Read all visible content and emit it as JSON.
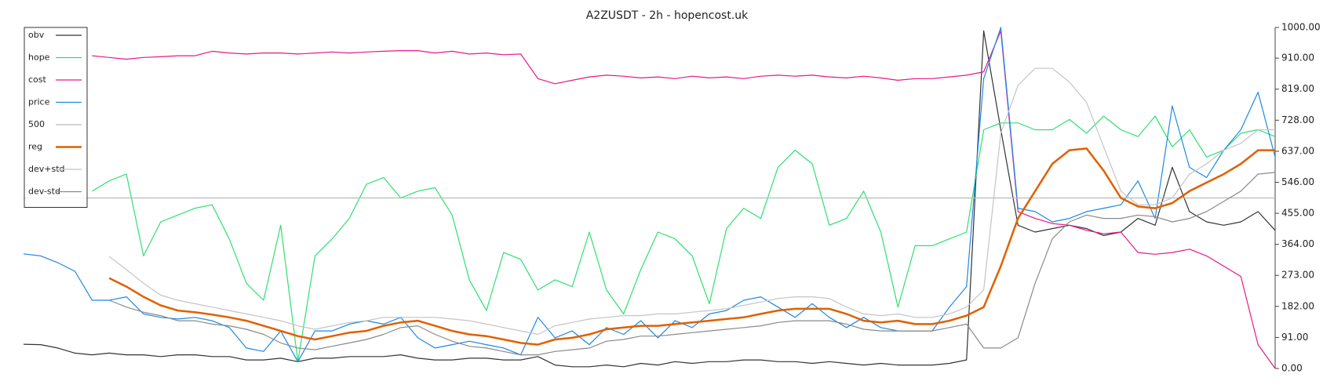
{
  "chart_data": {
    "type": "line",
    "title": "A2ZUSDT - 2h - hopencost.uk",
    "ylim": [
      0,
      1000
    ],
    "yticks": [
      {
        "value": 0,
        "label": "0.00"
      },
      {
        "value": 91,
        "label": "91.00"
      },
      {
        "value": 182,
        "label": "182.00"
      },
      {
        "value": 273,
        "label": "273.00"
      },
      {
        "value": 364,
        "label": "364.00"
      },
      {
        "value": 455,
        "label": "455.00"
      },
      {
        "value": 546,
        "label": "546.00"
      },
      {
        "value": 637,
        "label": "637.00"
      },
      {
        "value": 728,
        "label": "728.00"
      },
      {
        "value": 819,
        "label": "819.00"
      },
      {
        "value": 910,
        "label": "910.00"
      },
      {
        "value": 1000,
        "label": "1000.00"
      }
    ],
    "legend": "upper left",
    "series": [
      {
        "name": "obv",
        "color": "#333333",
        "values": [
          71,
          70,
          60,
          45,
          40,
          45,
          40,
          40,
          35,
          40,
          40,
          35,
          35,
          25,
          25,
          30,
          20,
          30,
          30,
          35,
          35,
          35,
          40,
          30,
          25,
          25,
          30,
          30,
          25,
          25,
          35,
          10,
          5,
          5,
          10,
          5,
          15,
          10,
          20,
          15,
          20,
          20,
          25,
          25,
          20,
          20,
          15,
          20,
          15,
          10,
          15,
          10,
          10,
          10,
          15,
          25,
          990,
          700,
          420,
          400,
          410,
          420,
          410,
          390,
          400,
          440,
          420,
          590,
          460,
          430,
          420,
          430,
          460,
          405
        ]
      },
      {
        "name": "hope",
        "color": "#2ee06e",
        "values": [
          null,
          null,
          null,
          null,
          520,
          550,
          570,
          330,
          430,
          450,
          470,
          480,
          380,
          250,
          200,
          420,
          20,
          330,
          380,
          440,
          540,
          560,
          500,
          520,
          530,
          450,
          260,
          170,
          340,
          320,
          230,
          260,
          240,
          400,
          230,
          160,
          290,
          400,
          380,
          330,
          190,
          410,
          470,
          440,
          590,
          640,
          600,
          420,
          440,
          520,
          400,
          180,
          360,
          360,
          380,
          400,
          700,
          720,
          720,
          700,
          700,
          730,
          690,
          740,
          700,
          680,
          740,
          650,
          700,
          620,
          640,
          690,
          700,
          680
        ]
      },
      {
        "name": "cost",
        "color": "#e8178a",
        "values": [
          null,
          null,
          null,
          null,
          917,
          912,
          907,
          912,
          914,
          917,
          917,
          930,
          925,
          922,
          925,
          925,
          922,
          925,
          928,
          925,
          928,
          930,
          932,
          932,
          925,
          930,
          922,
          925,
          920,
          922,
          850,
          835,
          845,
          855,
          860,
          857,
          852,
          855,
          850,
          857,
          852,
          855,
          850,
          857,
          860,
          857,
          860,
          855,
          852,
          857,
          852,
          845,
          850,
          850,
          855,
          860,
          870,
          990,
          460,
          440,
          425,
          420,
          405,
          395,
          400,
          340,
          335,
          340,
          350,
          330,
          300,
          270,
          70,
          0
        ]
      },
      {
        "name": "price",
        "color": "#1e88e5",
        "values": [
          336,
          330,
          310,
          285,
          200,
          200,
          210,
          160,
          150,
          145,
          150,
          140,
          120,
          60,
          50,
          110,
          20,
          110,
          110,
          130,
          140,
          130,
          150,
          90,
          60,
          70,
          80,
          70,
          60,
          40,
          150,
          90,
          110,
          70,
          120,
          100,
          140,
          90,
          140,
          120,
          160,
          170,
          200,
          210,
          180,
          150,
          190,
          150,
          120,
          150,
          120,
          110,
          110,
          110,
          180,
          240,
          850,
          1000,
          470,
          460,
          430,
          440,
          460,
          470,
          480,
          550,
          440,
          770,
          590,
          560,
          640,
          700,
          810,
          620
        ]
      },
      {
        "name": "500",
        "color": "#bbbbbb",
        "values": [
          500,
          500,
          500,
          500,
          500,
          500,
          500,
          500,
          500,
          500,
          500,
          500,
          500,
          500,
          500,
          500,
          500,
          500,
          500,
          500,
          500,
          500,
          500,
          500,
          500,
          500,
          500,
          500,
          500,
          500,
          500,
          500,
          500,
          500,
          500,
          500,
          500,
          500,
          500,
          500,
          500,
          500,
          500,
          500,
          500,
          500,
          500,
          500,
          500,
          500,
          500,
          500,
          500,
          500,
          500,
          500,
          500,
          500,
          500,
          500,
          500,
          500,
          500,
          500,
          500,
          500,
          500,
          500,
          500,
          500,
          500,
          500,
          500,
          500
        ]
      },
      {
        "name": "reg",
        "color": "#e06000",
        "linewidth": 2.5,
        "values": [
          null,
          null,
          null,
          null,
          null,
          265,
          240,
          210,
          185,
          170,
          165,
          158,
          150,
          140,
          125,
          110,
          95,
          85,
          95,
          105,
          110,
          125,
          135,
          140,
          125,
          110,
          100,
          95,
          85,
          75,
          70,
          85,
          90,
          100,
          115,
          120,
          125,
          125,
          130,
          135,
          140,
          145,
          150,
          160,
          170,
          175,
          175,
          175,
          160,
          140,
          135,
          140,
          130,
          130,
          140,
          155,
          180,
          300,
          440,
          520,
          600,
          640,
          645,
          580,
          500,
          475,
          470,
          485,
          520,
          545,
          570,
          600,
          640,
          640
        ]
      },
      {
        "name": "dev+std",
        "color": "#c4c4c4",
        "values": [
          null,
          null,
          null,
          null,
          null,
          328,
          290,
          250,
          215,
          200,
          190,
          180,
          170,
          160,
          150,
          140,
          125,
          115,
          125,
          135,
          140,
          150,
          150,
          150,
          150,
          145,
          140,
          130,
          120,
          110,
          100,
          125,
          135,
          145,
          150,
          155,
          155,
          160,
          160,
          165,
          170,
          175,
          185,
          195,
          205,
          210,
          210,
          205,
          180,
          160,
          155,
          160,
          150,
          150,
          160,
          180,
          230,
          690,
          830,
          880,
          880,
          840,
          780,
          650,
          520,
          480,
          480,
          500,
          570,
          600,
          640,
          660,
          700,
          700
        ]
      },
      {
        "name": "dev-std",
        "color": "#8a8a8a",
        "values": [
          null,
          null,
          null,
          null,
          null,
          200,
          180,
          165,
          155,
          140,
          140,
          130,
          125,
          115,
          100,
          75,
          60,
          55,
          65,
          75,
          85,
          100,
          120,
          125,
          100,
          80,
          65,
          60,
          50,
          40,
          40,
          50,
          55,
          60,
          80,
          85,
          95,
          95,
          100,
          105,
          110,
          115,
          120,
          125,
          135,
          140,
          140,
          140,
          130,
          115,
          110,
          110,
          110,
          110,
          120,
          130,
          60,
          60,
          90,
          250,
          380,
          430,
          450,
          440,
          440,
          450,
          445,
          430,
          440,
          460,
          490,
          520,
          570,
          575
        ]
      }
    ]
  }
}
